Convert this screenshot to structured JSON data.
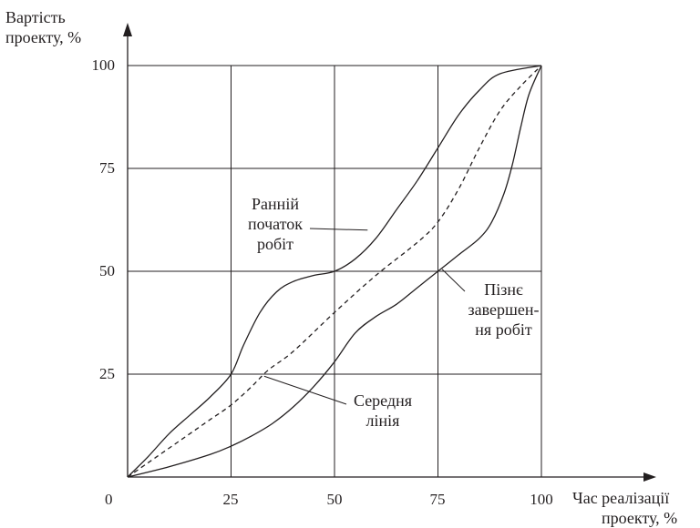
{
  "chart_data": {
    "type": "line",
    "ylabel_lines": [
      "Вартість",
      "проекту, %"
    ],
    "xlabel_lines": [
      "Час реалізації",
      "проекту,  %"
    ],
    "origin_label": "0",
    "x_ticks": [
      "25",
      "50",
      "75",
      "100"
    ],
    "y_ticks": [
      "25",
      "50",
      "75",
      "100"
    ],
    "xlim": [
      0,
      100
    ],
    "ylim": [
      0,
      100
    ],
    "grid": true,
    "series": [
      {
        "style": "solid",
        "points": [
          [
            0,
            0
          ],
          [
            5,
            5
          ],
          [
            10,
            10.5
          ],
          [
            15,
            15
          ],
          [
            20,
            19.5
          ],
          [
            25,
            25
          ],
          [
            28,
            32
          ],
          [
            32,
            40
          ],
          [
            36,
            45
          ],
          [
            40,
            47.5
          ],
          [
            45,
            49
          ],
          [
            50,
            50
          ],
          [
            55,
            53
          ],
          [
            60,
            58
          ],
          [
            65,
            65
          ],
          [
            70,
            72
          ],
          [
            75,
            80
          ],
          [
            80,
            88
          ],
          [
            85,
            94
          ],
          [
            90,
            98
          ],
          [
            100,
            100
          ]
        ]
      },
      {
        "style": "dashed",
        "points": [
          [
            0,
            0
          ],
          [
            5,
            3.5
          ],
          [
            10,
            7
          ],
          [
            15,
            10.5
          ],
          [
            20,
            14
          ],
          [
            25,
            17.5
          ],
          [
            30,
            22
          ],
          [
            34,
            26
          ],
          [
            40,
            30.5
          ],
          [
            50,
            40
          ],
          [
            60,
            49
          ],
          [
            70,
            57
          ],
          [
            75,
            62
          ],
          [
            80,
            70
          ],
          [
            85,
            80
          ],
          [
            90,
            89
          ],
          [
            95,
            95
          ],
          [
            100,
            100
          ]
        ]
      },
      {
        "style": "solid",
        "points": [
          [
            0,
            0
          ],
          [
            10,
            2.5
          ],
          [
            20,
            5.5
          ],
          [
            25,
            7.5
          ],
          [
            30,
            10
          ],
          [
            35,
            13
          ],
          [
            40,
            17
          ],
          [
            45,
            22
          ],
          [
            50,
            28
          ],
          [
            55,
            35
          ],
          [
            60,
            39
          ],
          [
            65,
            42
          ],
          [
            70,
            46
          ],
          [
            75,
            50
          ],
          [
            80,
            54
          ],
          [
            85,
            58
          ],
          [
            88,
            62
          ],
          [
            91,
            69
          ],
          [
            93,
            76
          ],
          [
            95,
            85
          ],
          [
            97,
            93
          ],
          [
            100,
            100
          ]
        ]
      }
    ],
    "annotations": [
      {
        "lines": [
          "Ранній",
          "початок",
          "робіт"
        ],
        "points_to_series": 0
      },
      {
        "lines": [
          "Пізнє",
          "завершен-",
          "ня робіт"
        ],
        "points_to_series": 2
      },
      {
        "lines": [
          "Середня",
          "лінія"
        ],
        "points_to_series": 1
      }
    ]
  }
}
